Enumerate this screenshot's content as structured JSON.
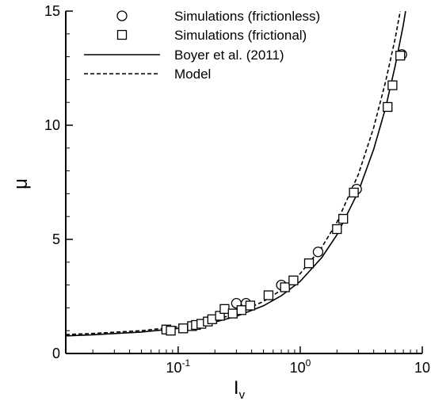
{
  "chart_data": {
    "type": "scatter",
    "title": "",
    "xlabel": "I",
    "xlabel_sub": "v",
    "ylabel": "μ",
    "xscale": "log",
    "xlim": [
      0.012,
      10
    ],
    "ylim": [
      0,
      15
    ],
    "grid": false,
    "legend_position": "top-right",
    "x_ticks": [
      {
        "value": 0.1,
        "label": "10",
        "exp": "-1"
      },
      {
        "value": 1,
        "label": "10",
        "exp": "0"
      },
      {
        "value": 10,
        "label": "10",
        "exp": ""
      }
    ],
    "y_ticks": [
      {
        "value": 0,
        "label": "0"
      },
      {
        "value": 5,
        "label": "5"
      },
      {
        "value": 10,
        "label": "10"
      },
      {
        "value": 15,
        "label": "15"
      }
    ],
    "legend": [
      {
        "label": "Simulations (frictionless)",
        "marker": "circle"
      },
      {
        "label": "Simulations (frictional)",
        "marker": "square"
      },
      {
        "label": "Boyer et al. (2011)",
        "line": "solid"
      },
      {
        "label": "Model",
        "line": "dashed"
      }
    ],
    "series": [
      {
        "name": "Simulations (frictionless)",
        "marker": "circle",
        "points": [
          {
            "x": 0.3,
            "y": 2.2
          },
          {
            "x": 0.36,
            "y": 2.2
          },
          {
            "x": 0.7,
            "y": 3.0
          },
          {
            "x": 1.4,
            "y": 4.45
          },
          {
            "x": 2.9,
            "y": 7.2
          },
          {
            "x": 6.8,
            "y": 13.1
          }
        ]
      },
      {
        "name": "Simulations (frictional)",
        "marker": "square",
        "points": [
          {
            "x": 0.08,
            "y": 1.05
          },
          {
            "x": 0.087,
            "y": 1.0
          },
          {
            "x": 0.11,
            "y": 1.1
          },
          {
            "x": 0.13,
            "y": 1.2
          },
          {
            "x": 0.14,
            "y": 1.25
          },
          {
            "x": 0.155,
            "y": 1.3
          },
          {
            "x": 0.175,
            "y": 1.4
          },
          {
            "x": 0.19,
            "y": 1.5
          },
          {
            "x": 0.22,
            "y": 1.65
          },
          {
            "x": 0.24,
            "y": 1.95
          },
          {
            "x": 0.28,
            "y": 1.75
          },
          {
            "x": 0.33,
            "y": 1.9
          },
          {
            "x": 0.39,
            "y": 2.1
          },
          {
            "x": 0.55,
            "y": 2.55
          },
          {
            "x": 0.75,
            "y": 2.9
          },
          {
            "x": 0.88,
            "y": 3.2
          },
          {
            "x": 1.18,
            "y": 3.95
          },
          {
            "x": 2.0,
            "y": 5.45
          },
          {
            "x": 2.25,
            "y": 5.9
          },
          {
            "x": 2.75,
            "y": 7.05
          },
          {
            "x": 5.2,
            "y": 10.8
          },
          {
            "x": 5.7,
            "y": 11.75
          },
          {
            "x": 6.6,
            "y": 13.05
          }
        ]
      },
      {
        "name": "Boyer et al. (2011)",
        "line": "solid",
        "points": [
          {
            "x": 0.012,
            "y": 0.77
          },
          {
            "x": 0.02,
            "y": 0.82
          },
          {
            "x": 0.05,
            "y": 0.94
          },
          {
            "x": 0.1,
            "y": 1.1
          },
          {
            "x": 0.2,
            "y": 1.38
          },
          {
            "x": 0.3,
            "y": 1.63
          },
          {
            "x": 0.5,
            "y": 2.09
          },
          {
            "x": 0.7,
            "y": 2.53
          },
          {
            "x": 1.0,
            "y": 3.16
          },
          {
            "x": 1.5,
            "y": 4.2
          },
          {
            "x": 2.0,
            "y": 5.2
          },
          {
            "x": 3.0,
            "y": 7.1
          },
          {
            "x": 4.0,
            "y": 8.95
          },
          {
            "x": 5.0,
            "y": 10.75
          },
          {
            "x": 6.0,
            "y": 12.6
          },
          {
            "x": 7.0,
            "y": 14.4
          },
          {
            "x": 7.3,
            "y": 15.0
          }
        ]
      },
      {
        "name": "Model",
        "line": "dashed",
        "points": [
          {
            "x": 0.012,
            "y": 0.83
          },
          {
            "x": 0.02,
            "y": 0.88
          },
          {
            "x": 0.05,
            "y": 1.0
          },
          {
            "x": 0.1,
            "y": 1.17
          },
          {
            "x": 0.2,
            "y": 1.47
          },
          {
            "x": 0.3,
            "y": 1.75
          },
          {
            "x": 0.5,
            "y": 2.28
          },
          {
            "x": 0.7,
            "y": 2.78
          },
          {
            "x": 1.0,
            "y": 3.5
          },
          {
            "x": 1.5,
            "y": 4.65
          },
          {
            "x": 2.0,
            "y": 5.75
          },
          {
            "x": 3.0,
            "y": 7.85
          },
          {
            "x": 4.0,
            "y": 9.9
          },
          {
            "x": 5.0,
            "y": 11.9
          },
          {
            "x": 6.0,
            "y": 13.8
          },
          {
            "x": 6.6,
            "y": 15.0
          }
        ]
      }
    ]
  }
}
